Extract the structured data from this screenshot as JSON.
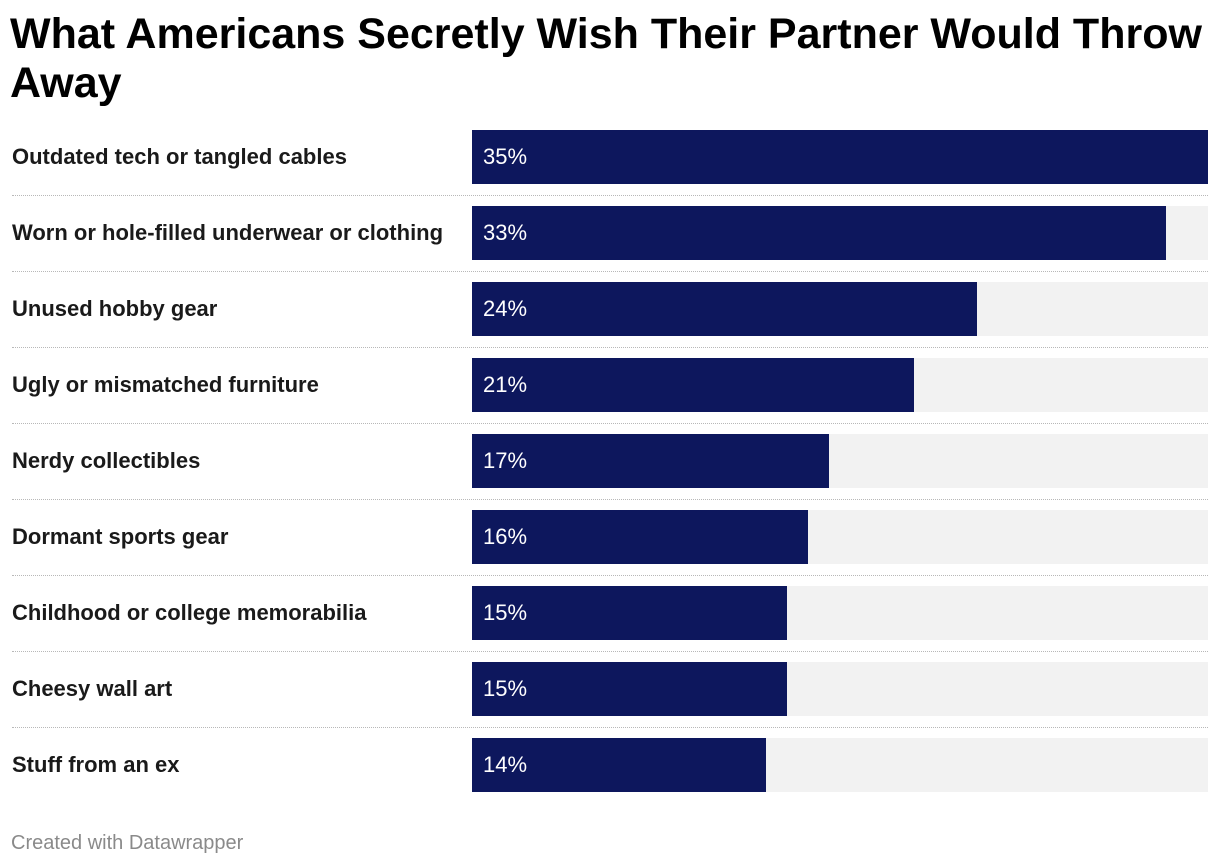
{
  "chart_data": {
    "type": "bar",
    "orientation": "horizontal",
    "title": "What Americans Secretly Wish Their Partner Would Throw Away",
    "categories": [
      "Outdated tech or tangled cables",
      "Worn or hole-filled underwear or clothing",
      "Unused hobby gear",
      "Ugly or mismatched furniture",
      "Nerdy collectibles",
      "Dormant sports gear",
      "Childhood or college memorabilia",
      "Cheesy wall art",
      "Stuff from an ex"
    ],
    "values": [
      35,
      33,
      24,
      21,
      17,
      16,
      15,
      15,
      14
    ],
    "value_labels": [
      "35%",
      "33%",
      "24%",
      "21%",
      "17%",
      "16%",
      "15%",
      "15%",
      "14%"
    ],
    "unit": "%",
    "xlim": [
      0,
      35
    ],
    "bar_color": "#0d175d",
    "track_color": "#f2f2f2"
  },
  "footer": {
    "credit": "Created with Datawrapper"
  }
}
